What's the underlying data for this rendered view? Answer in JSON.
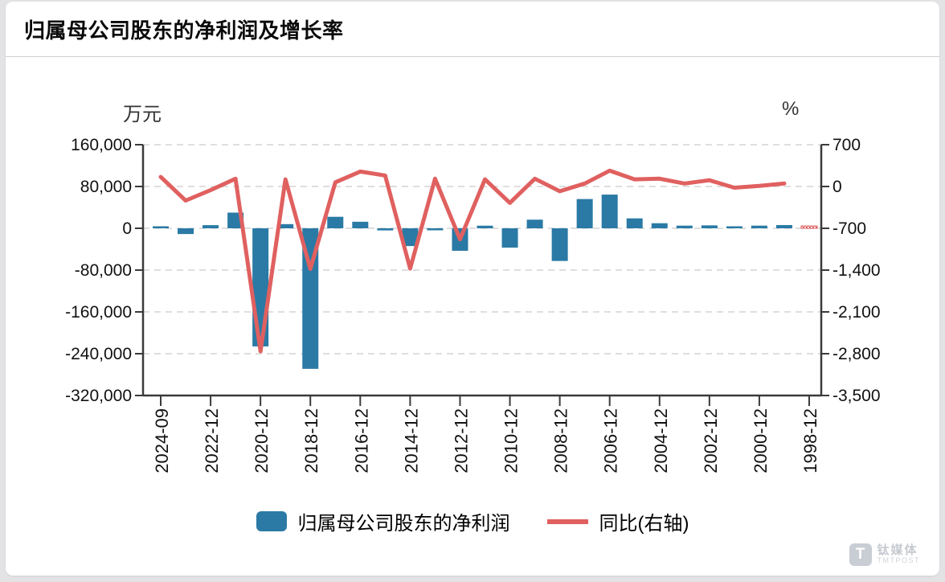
{
  "card": {
    "title": "归属母公司股东的净利润及增长率"
  },
  "chart_data": {
    "type": "bar+line",
    "title": "归属母公司股东的净利润及增长率",
    "categories": [
      "2024-09",
      "2023-12",
      "2022-12",
      "2021-12",
      "2020-12",
      "2019-12",
      "2018-12",
      "2017-12",
      "2016-12",
      "2015-12",
      "2014-12",
      "2013-12",
      "2012-12",
      "2011-12",
      "2010-12",
      "2009-12",
      "2008-12",
      "2007-12",
      "2006-12",
      "2005-12",
      "2004-12",
      "2003-12",
      "2002-12",
      "2001-12",
      "2000-12",
      "1999-12",
      "1998-12"
    ],
    "x_tick_labels": [
      "2024-09",
      "2022-12",
      "2020-12",
      "2018-12",
      "2016-12",
      "2014-12",
      "2012-12",
      "2010-12",
      "2008-12",
      "2006-12",
      "2004-12",
      "2002-12",
      "2000-12",
      "1998-12"
    ],
    "series": [
      {
        "name": "归属母公司股东的净利润",
        "type": "bar",
        "axis": "left",
        "unit": "万元",
        "color": "#2a7aa5",
        "values": [
          1500,
          -11000,
          6000,
          30000,
          -226000,
          8000,
          -269000,
          22000,
          12500,
          -4000,
          -34000,
          -2500,
          -43000,
          5000,
          -37000,
          16500,
          -62500,
          56000,
          64500,
          19000,
          9700,
          5100,
          5600,
          3600,
          5100,
          6200,
          4500
        ],
        "hatched_red_bars": [
          "1998-12"
        ]
      },
      {
        "name": "同比(右轴)",
        "type": "line",
        "axis": "right",
        "unit": "%",
        "color": "#e06060",
        "values": [
          160,
          -235,
          -60,
          130,
          -2760,
          120,
          -1380,
          70,
          250,
          185,
          -1375,
          130,
          -885,
          120,
          -275,
          130,
          -80,
          50,
          265,
          120,
          130,
          50,
          105,
          -20,
          10,
          50,
          null
        ]
      }
    ],
    "left_axis": {
      "label": "万元",
      "range": [
        -320000,
        160000
      ],
      "ticks": [
        160000,
        80000,
        0,
        -80000,
        -160000,
        -240000,
        -320000
      ],
      "tick_labels": [
        "160,000",
        "80,000",
        "0",
        "-80,000",
        "-160,000",
        "-240,000",
        "-320,000"
      ]
    },
    "right_axis": {
      "label": "%",
      "range": [
        -3500,
        700
      ],
      "ticks": [
        700,
        0,
        -700,
        -1400,
        -2100,
        -2800,
        -3500
      ],
      "tick_labels": [
        "700",
        "0",
        "-700",
        "-1,400",
        "-2,100",
        "-2,800",
        "-3,500"
      ]
    },
    "grid": "dashed horizontal",
    "legend_position": "bottom",
    "annotations": [
      {
        "target": "1998-12",
        "note": "bar drawn as small red hatched segment at zero line; growth line has no value at 1998-12"
      }
    ]
  },
  "legend": {
    "bar_label": "归属母公司股东的净利润",
    "line_label": "同比(右轴)"
  },
  "watermark": {
    "logo_text": "T",
    "name": "钛媒体",
    "subname": "TMTPOST"
  },
  "colors": {
    "bar": "#2a7aa5",
    "line": "#e06060",
    "grid": "#dedede",
    "axis": "#3a3a3a"
  }
}
